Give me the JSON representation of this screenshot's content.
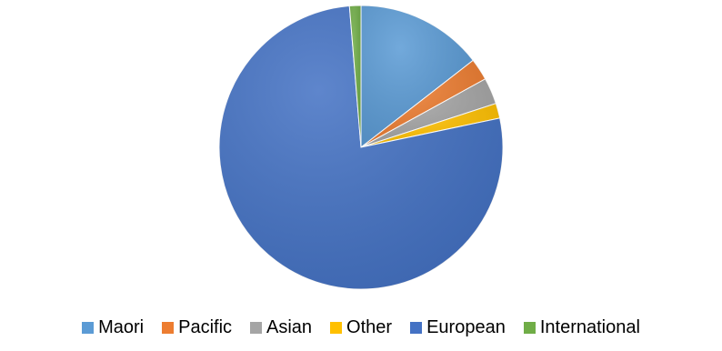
{
  "chart_data": {
    "type": "pie",
    "title": "",
    "categories": [
      "Maori",
      "Pacific",
      "Asian",
      "Other",
      "European",
      "International"
    ],
    "values": [
      14.5,
      2.5,
      3.0,
      1.7,
      77.0,
      1.3
    ],
    "colors": [
      "#5B9BD5",
      "#ED7D31",
      "#A5A5A5",
      "#FFC000",
      "#4472C4",
      "#70AD47"
    ],
    "legend_position": "bottom"
  }
}
